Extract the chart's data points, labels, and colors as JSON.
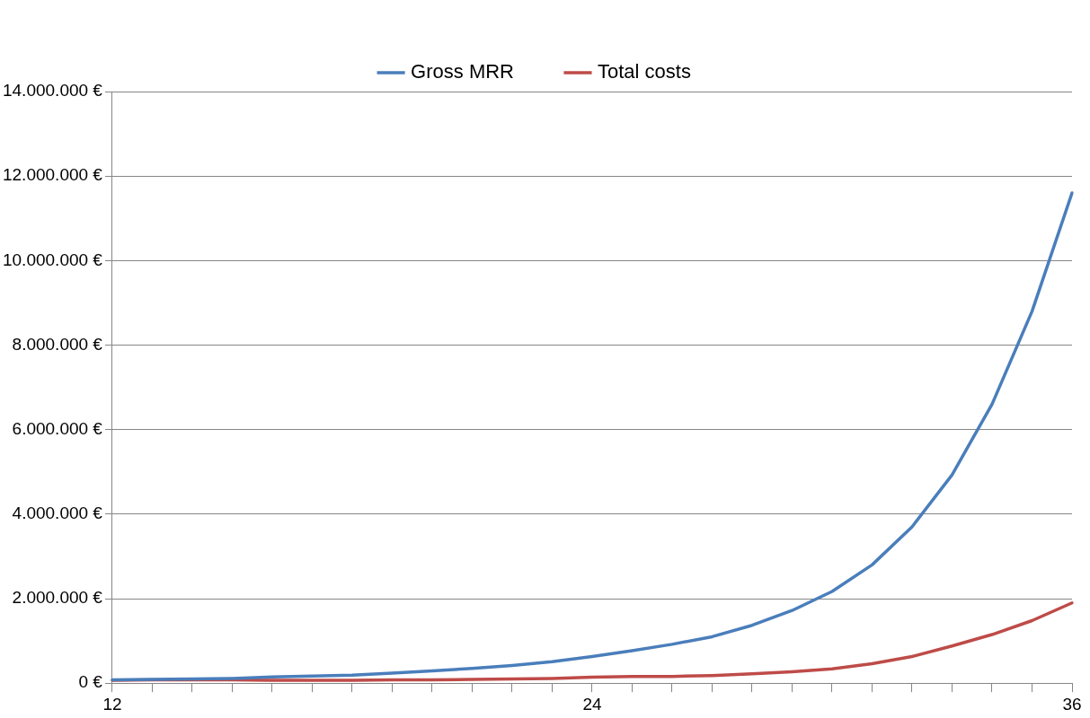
{
  "chart_data": {
    "type": "line",
    "categories": [
      "12",
      null,
      null,
      null,
      null,
      null,
      null,
      null,
      null,
      null,
      null,
      null,
      "24",
      null,
      null,
      null,
      null,
      null,
      null,
      null,
      null,
      null,
      null,
      null,
      "36"
    ],
    "series": [
      {
        "name": "Gross MRR",
        "color": "#4a7ebb",
        "values": [
          80000,
          90000,
          100000,
          110000,
          150000,
          170000,
          190000,
          240000,
          290000,
          350000,
          420000,
          510000,
          630000,
          770000,
          920000,
          1100000,
          1370000,
          1720000,
          2170000,
          2800000,
          3700000,
          4930000,
          6600000,
          8800000,
          11600000
        ]
      },
      {
        "name": "Total costs",
        "color": "#be4b48",
        "values": [
          70000,
          80000,
          80000,
          80000,
          70000,
          70000,
          70000,
          80000,
          80000,
          90000,
          100000,
          110000,
          140000,
          160000,
          160000,
          180000,
          220000,
          270000,
          340000,
          460000,
          630000,
          880000,
          1150000,
          1480000,
          1900000
        ]
      }
    ],
    "ylim": [
      0,
      14000000
    ],
    "yticks": [
      {
        "value": 0,
        "label": "0 €"
      },
      {
        "value": 2000000,
        "label": "2.000.000 €"
      },
      {
        "value": 4000000,
        "label": "4.000.000 €"
      },
      {
        "value": 6000000,
        "label": "6.000.000 €"
      },
      {
        "value": 8000000,
        "label": "8.000.000 €"
      },
      {
        "value": 10000000,
        "label": "10.000.000 €"
      },
      {
        "value": 12000000,
        "label": "12.000.000 €"
      },
      {
        "value": 14000000,
        "label": "14.000.000 €"
      }
    ],
    "grid": "y",
    "legend": "top",
    "marker": "none",
    "line_style": "solid"
  }
}
